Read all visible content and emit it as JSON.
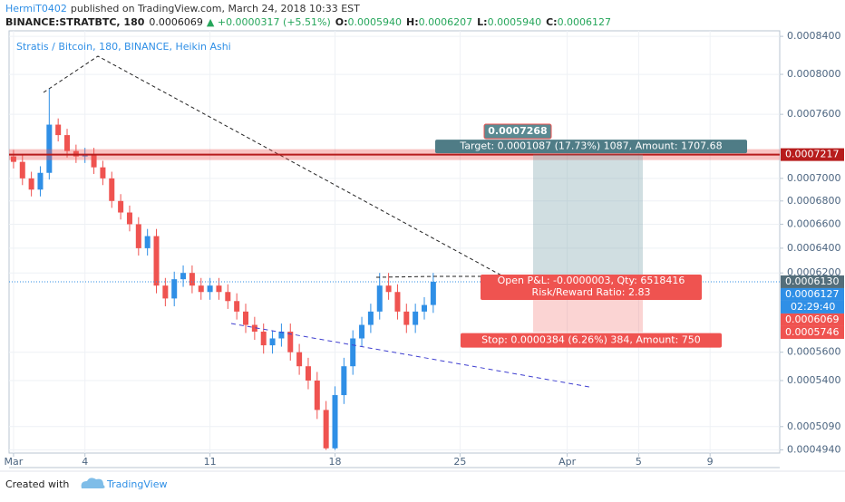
{
  "header": {
    "author": "HermiT0402",
    "published": "published on TradingView.com, March 24, 2018 10:33 EST"
  },
  "symbol": {
    "name": "BINANCE:STRATBTC, 180",
    "last": "0.0006069",
    "change": "▲ +0.0000317 (+5.51%)",
    "ohlc": [
      {
        "key": "O:",
        "value": "0.0005940"
      },
      {
        "key": "H:",
        "value": "0.0006207"
      },
      {
        "key": "L:",
        "value": "0.0005940"
      },
      {
        "key": "C:",
        "value": "0.0006127"
      }
    ]
  },
  "chart_data": {
    "type": "candlestick",
    "title": "Stratis / Bitcoin, 180, BINANCE, Heikin Ashi",
    "x": [
      0,
      0.5,
      1,
      1.5,
      2,
      2.5,
      3,
      3.5,
      4,
      4.5,
      5,
      5.5,
      6,
      6.5,
      7,
      7.5,
      8,
      8.5,
      9,
      9.5,
      10,
      10.5,
      11,
      11.5,
      12,
      12.5,
      13,
      13.5,
      14,
      14.5,
      15,
      15.5,
      16,
      16.5,
      17,
      17.5,
      18,
      18.5,
      19,
      19.5,
      20,
      20.5,
      21,
      21.5,
      22,
      22.5,
      23,
      23.5
    ],
    "open": [
      0.00072,
      0.000715,
      0.0007,
      0.00069,
      0.000705,
      0.00075,
      0.00074,
      0.000725,
      0.00072,
      0.000722,
      0.00071,
      0.0007,
      0.00068,
      0.00067,
      0.00066,
      0.00064,
      0.00065,
      0.00061,
      0.0006,
      0.000615,
      0.00062,
      0.00061,
      0.000605,
      0.00061,
      0.000605,
      0.000598,
      0.00059,
      0.00058,
      0.000575,
      0.000565,
      0.00057,
      0.000575,
      0.00056,
      0.00055,
      0.00054,
      0.00052,
      0.000495,
      0.00053,
      0.00055,
      0.00057,
      0.00058,
      0.00059,
      0.00061,
      0.000605,
      0.00059,
      0.00058,
      0.00059,
      0.000595
    ],
    "high": [
      0.000726,
      0.000721,
      0.000706,
      0.000711,
      0.000785,
      0.000756,
      0.000746,
      0.000731,
      0.000728,
      0.000728,
      0.000716,
      0.000706,
      0.000686,
      0.000676,
      0.000666,
      0.000656,
      0.000656,
      0.000616,
      0.000621,
      0.000626,
      0.000626,
      0.000616,
      0.000616,
      0.000616,
      0.000611,
      0.000604,
      0.000596,
      0.000586,
      0.000581,
      0.000576,
      0.000581,
      0.000581,
      0.000566,
      0.000556,
      0.000546,
      0.000526,
      0.000536,
      0.000556,
      0.000576,
      0.000586,
      0.000596,
      0.00062,
      0.00062,
      0.000611,
      0.000596,
      0.000596,
      0.000601,
      0.00062
    ],
    "low": [
      0.000709,
      0.000694,
      0.000684,
      0.000684,
      0.000699,
      0.000734,
      0.000719,
      0.000714,
      0.000714,
      0.000704,
      0.000694,
      0.000674,
      0.000664,
      0.000654,
      0.000634,
      0.000634,
      0.000604,
      0.000594,
      0.000594,
      0.000609,
      0.000604,
      0.000599,
      0.000599,
      0.000599,
      0.000592,
      0.000584,
      0.000574,
      0.000569,
      0.000559,
      0.000559,
      0.000564,
      0.000554,
      0.000544,
      0.000534,
      0.000514,
      0.000494,
      0.000494,
      0.000524,
      0.000544,
      0.000564,
      0.000574,
      0.000584,
      0.000599,
      0.000584,
      0.000574,
      0.000574,
      0.000584,
      0.000589
    ],
    "close": [
      0.000715,
      0.0007,
      0.00069,
      0.000705,
      0.00075,
      0.00074,
      0.000725,
      0.00072,
      0.000722,
      0.00071,
      0.0007,
      0.00068,
      0.00067,
      0.00066,
      0.00064,
      0.00065,
      0.00061,
      0.0006,
      0.000615,
      0.00062,
      0.00061,
      0.000605,
      0.00061,
      0.000605,
      0.000598,
      0.00059,
      0.00058,
      0.000575,
      0.000565,
      0.00057,
      0.000575,
      0.00056,
      0.00055,
      0.00054,
      0.00052,
      0.000495,
      0.00053,
      0.00055,
      0.00057,
      0.00058,
      0.00059,
      0.00061,
      0.000605,
      0.00059,
      0.00058,
      0.00059,
      0.000595,
      0.000613
    ],
    "up_color": "#2f8fe6",
    "down_color": "#ef5350",
    "xlim": [
      -0.25,
      42.9
    ],
    "xticks": [
      {
        "value": 0,
        "label": "Mar"
      },
      4,
      11,
      18,
      25,
      {
        "value": 31,
        "label": "Apr"
      },
      {
        "value": 35,
        "label": "5"
      },
      {
        "value": 39,
        "label": "9"
      }
    ],
    "ylim": [
      0.000492,
      0.000846
    ],
    "log_scale": true,
    "yticks": [
      {
        "value": 0.00084,
        "label": "0.0008400"
      },
      {
        "value": 0.0008,
        "label": "0.0008000"
      },
      {
        "value": 0.00076,
        "label": "0.0007600"
      },
      {
        "value": 0.0007,
        "label": "0.0007000"
      },
      {
        "value": 0.00068,
        "label": "0.0006800"
      },
      {
        "value": 0.00066,
        "label": "0.0006600"
      },
      {
        "value": 0.00064,
        "label": "0.0006400"
      },
      {
        "value": 0.00062,
        "label": "0.0006200"
      },
      {
        "value": 0.00056,
        "label": "0.0005600"
      },
      {
        "value": 0.00054,
        "label": "0.0005400"
      },
      {
        "value": 0.000509,
        "label": "0.0005090"
      },
      {
        "value": 0.000494,
        "label": "0.0004940"
      }
    ],
    "price_labels": [
      {
        "value": 0.0007217,
        "label": "0.0007217",
        "color": "#b71c1c"
      },
      {
        "value": 0.000613,
        "label": "0.0006130",
        "color": "#546e7a"
      },
      {
        "value": 0.0006127,
        "label": "0.0006127",
        "color": "#2f8fe6"
      },
      {
        "value": 0.0006069,
        "label": "0.0006069",
        "color": "#ef5350"
      },
      {
        "value": 0.0005746,
        "label": "0.0005746",
        "color": "#ef5350"
      }
    ],
    "countdown": "02:29:40",
    "annotations": {
      "target_price": "0.0007268",
      "target": "Target: 0.0001087 (17.73%) 1087, Amount: 1707.68",
      "pnl": "Open P&L: -0.0000003, Qty: 6518416",
      "rr": "Risk/Reward Ratio: 2.83",
      "stop": "Stop: 0.0000384 (6.26%) 384, Amount: 750"
    }
  },
  "footer": {
    "created": "Created with",
    "brand": "TradingView"
  }
}
